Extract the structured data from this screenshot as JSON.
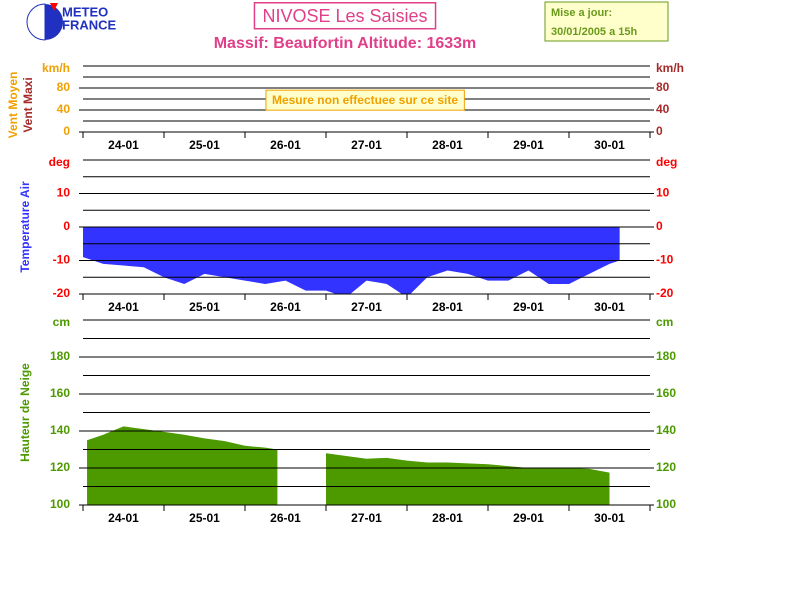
{
  "header": {
    "logo_line1": "METEO",
    "logo_line2": "FRANCE",
    "title": "NIVOSE Les Saisies",
    "subtitle": "Massif: Beaufortin Altitude: 1633m",
    "update_label": "Mise a jour:",
    "update_time": "30/01/2005 a 15h"
  },
  "chart_data": [
    {
      "type": "line",
      "annotation": "Mesure non effectuee sur ce site",
      "y_unit": "km/h",
      "y2_unit": "km/h",
      "tick_color": "#f0a000",
      "y2_tick_color": "#a52a2a",
      "series": [
        {
          "name": "Vent Moyen",
          "color": "#f0a000",
          "x": [],
          "values": []
        },
        {
          "name": "Vent Maxi",
          "color": "#a52a2a",
          "x": [],
          "values": []
        }
      ],
      "ylim": [
        0,
        120
      ],
      "yticks": [
        0,
        40,
        80
      ],
      "y2lim": [
        0,
        120
      ],
      "y2ticks": [
        0,
        40,
        80
      ],
      "minor_yticks": [
        0,
        20,
        40,
        60,
        80,
        100,
        120
      ],
      "xlim": [
        0,
        7
      ],
      "xticks": [
        {
          "value": 0.5,
          "label": "24-01"
        },
        {
          "value": 1.5,
          "label": "25-01"
        },
        {
          "value": 2.5,
          "label": "26-01"
        },
        {
          "value": 3.5,
          "label": "27-01"
        },
        {
          "value": 4.5,
          "label": "28-01"
        },
        {
          "value": 5.5,
          "label": "29-01"
        },
        {
          "value": 6.5,
          "label": "30-01"
        }
      ],
      "minor_xticks": [
        0,
        1,
        2,
        3,
        4,
        5,
        6,
        7
      ]
    },
    {
      "type": "area",
      "ylabel": "Temperature Air",
      "ylabel_color": "#3333ff",
      "y_unit": "deg",
      "y2_unit": "deg",
      "tick_color": "#ff0000",
      "y2_tick_color": "#ff0000",
      "series": [
        {
          "name": "Temperature Air",
          "color": "#3333ff",
          "x": [
            0,
            0.25,
            0.5,
            0.75,
            1.0,
            1.25,
            1.5,
            1.75,
            2.0,
            2.25,
            2.5,
            2.75,
            3.0,
            3.25,
            3.5,
            3.75,
            4.0,
            4.25,
            4.5,
            4.75,
            5.0,
            5.25,
            5.5,
            5.75,
            6.0,
            6.25,
            6.5,
            6.625
          ],
          "values": [
            -9,
            -11,
            -11.5,
            -12,
            -15,
            -17,
            -14,
            -15,
            -16,
            -17,
            -16,
            -19,
            -19,
            -21,
            -16,
            -17,
            -21,
            -15,
            -13,
            -14,
            -16,
            -16,
            -13,
            -17,
            -17,
            -14,
            -11,
            -10
          ]
        }
      ],
      "ylim": [
        -20,
        20
      ],
      "yticks": [
        -20,
        -10,
        0,
        10
      ],
      "y2lim": [
        -20,
        20
      ],
      "y2ticks": [
        -20,
        -10,
        0,
        10
      ],
      "minor_yticks": [
        -20,
        -15,
        -10,
        -5,
        0,
        5,
        10,
        15,
        20
      ],
      "xlim": [
        0,
        7
      ],
      "xticks": [
        {
          "value": 0.5,
          "label": "24-01"
        },
        {
          "value": 1.5,
          "label": "25-01"
        },
        {
          "value": 2.5,
          "label": "26-01"
        },
        {
          "value": 3.5,
          "label": "27-01"
        },
        {
          "value": 4.5,
          "label": "28-01"
        },
        {
          "value": 5.5,
          "label": "29-01"
        },
        {
          "value": 6.5,
          "label": "30-01"
        }
      ],
      "minor_xticks": [
        0,
        1,
        2,
        3,
        4,
        5,
        6,
        7
      ]
    },
    {
      "type": "area",
      "ylabel": "Hauteur de Neige",
      "ylabel_color": "#4c9900",
      "y_unit": "cm",
      "y2_unit": "cm",
      "tick_color": "#4c9900",
      "y2_tick_color": "#4c9900",
      "series": [
        {
          "name": "Hauteur de Neige",
          "color": "#4c9900",
          "x": [
            0.05,
            0.25,
            0.5,
            0.75,
            1.0,
            1.25,
            1.5,
            1.75,
            2.0,
            2.25,
            2.4,
            2.7,
            3.0,
            3.25,
            3.5,
            3.75,
            4.0,
            4.25,
            4.5,
            4.75,
            5.0,
            5.25,
            5.5,
            5.75,
            6.0,
            6.25,
            6.5
          ],
          "values": [
            135,
            138,
            142.5,
            141,
            139.5,
            138,
            136,
            134.5,
            132,
            131,
            130,
            null,
            128,
            126.5,
            125,
            125.5,
            124,
            123,
            123,
            122.5,
            122,
            121,
            120,
            120,
            120,
            119.5,
            117.5
          ]
        }
      ],
      "ylim": [
        100,
        200
      ],
      "yticks": [
        100,
        120,
        140,
        160,
        180
      ],
      "y2lim": [
        100,
        200
      ],
      "y2ticks": [
        100,
        120,
        140,
        160,
        180
      ],
      "minor_yticks": [
        100,
        110,
        120,
        130,
        140,
        150,
        160,
        170,
        180,
        190,
        200
      ],
      "xlim": [
        0,
        7
      ],
      "xticks": [
        {
          "value": 0.5,
          "label": "24-01"
        },
        {
          "value": 1.5,
          "label": "25-01"
        },
        {
          "value": 2.5,
          "label": "26-01"
        },
        {
          "value": 3.5,
          "label": "27-01"
        },
        {
          "value": 4.5,
          "label": "28-01"
        },
        {
          "value": 5.5,
          "label": "29-01"
        },
        {
          "value": 6.5,
          "label": "30-01"
        }
      ],
      "minor_xticks": [
        0,
        1,
        2,
        3,
        4,
        5,
        6,
        7
      ]
    }
  ]
}
